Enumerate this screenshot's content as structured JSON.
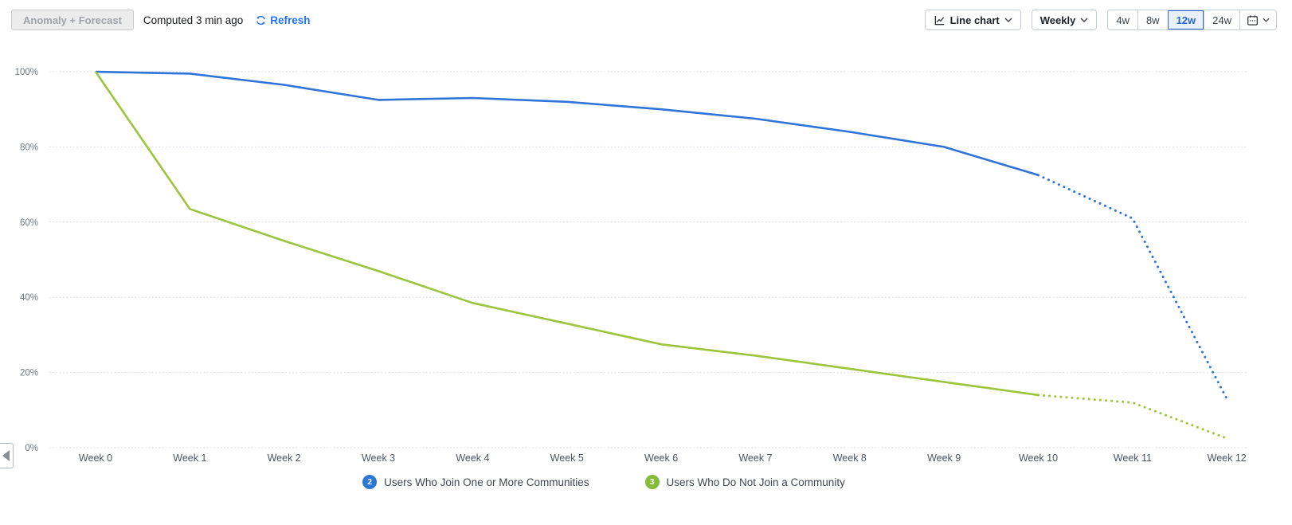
{
  "toolbar": {
    "anomaly_button": "Anomaly + Forecast",
    "computed_text": "Computed 3 min ago",
    "refresh_label": "Refresh",
    "chart_type_label": "Line chart",
    "interval_label": "Weekly",
    "ranges": [
      {
        "label": "4w",
        "selected": false
      },
      {
        "label": "8w",
        "selected": false
      },
      {
        "label": "12w",
        "selected": true
      },
      {
        "label": "24w",
        "selected": false
      }
    ],
    "accent_color": "#2e6bd8"
  },
  "chart_data": {
    "type": "line",
    "x_categories": [
      "Week 0",
      "Week 1",
      "Week 2",
      "Week 3",
      "Week 4",
      "Week 5",
      "Week 6",
      "Week 7",
      "Week 8",
      "Week 9",
      "Week 10",
      "Week 11",
      "Week 12"
    ],
    "y_ticks": [
      "0%",
      "20%",
      "40%",
      "60%",
      "80%",
      "100%"
    ],
    "ylim": [
      0,
      100
    ],
    "grid": "horizontal-dotted",
    "legend_position": "bottom",
    "forecast_start_index": 10,
    "forecast_style": "dotted",
    "series": [
      {
        "name": "Users Who Join One or More Communities",
        "badge": "2",
        "color": "#2e74d9",
        "badge_color": "#2b78d3",
        "values": [
          100,
          99.5,
          96.5,
          92.5,
          93,
          92,
          90,
          87.5,
          84,
          80,
          72.5,
          61,
          13
        ]
      },
      {
        "name": "Users Who Do Not Join a Community",
        "badge": "3",
        "color": "#9cc53c",
        "badge_color": "#84bb37",
        "values": [
          100,
          63.5,
          55,
          47,
          38.5,
          33,
          27.5,
          24.5,
          21,
          17.5,
          14,
          12,
          2.5
        ]
      }
    ]
  }
}
